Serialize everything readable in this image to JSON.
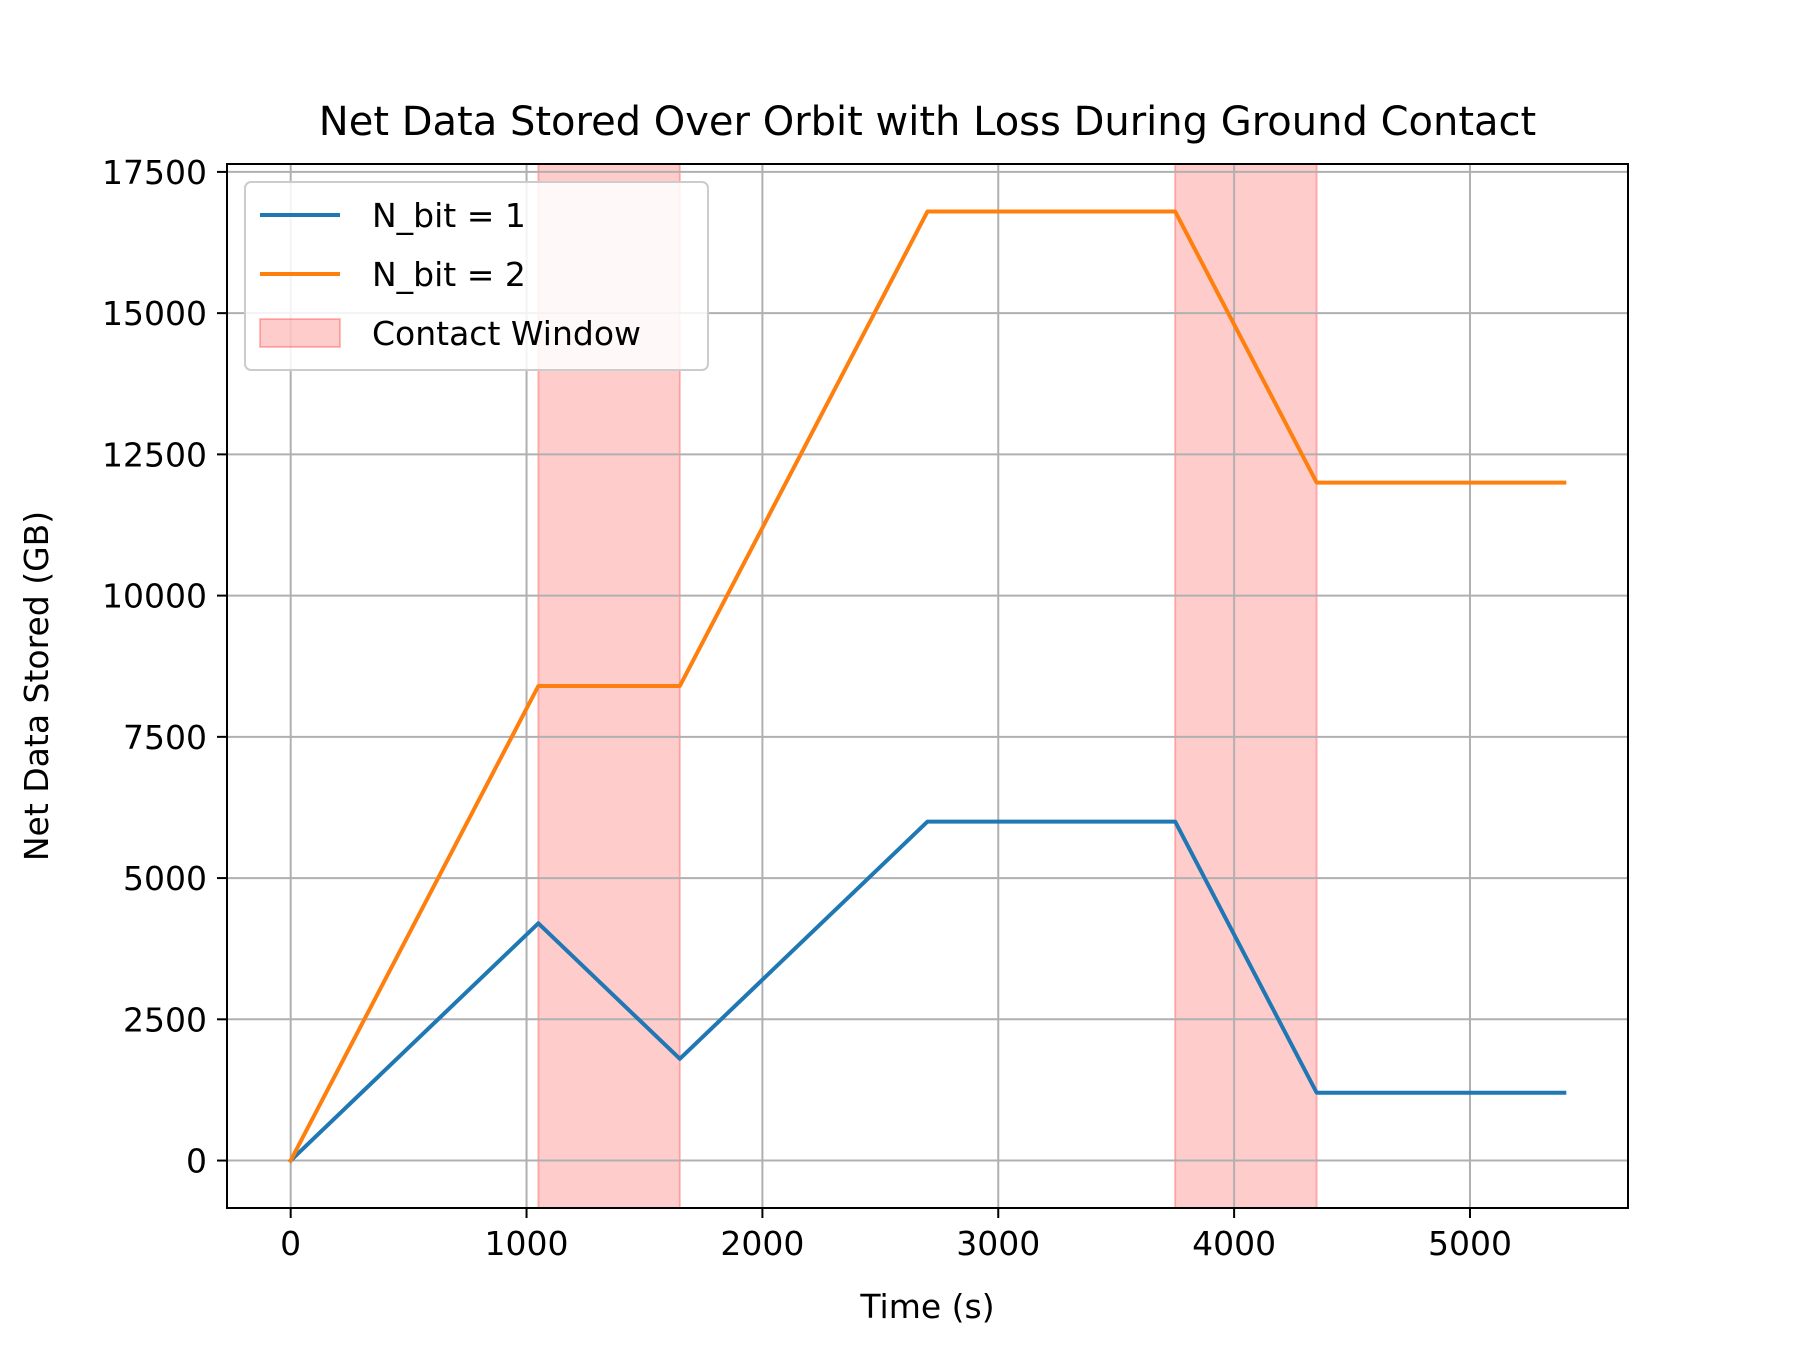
{
  "chart_data": {
    "type": "line",
    "title": "Net Data Stored Over Orbit with Loss During Ground Contact",
    "xlabel": "Time (s)",
    "ylabel": "Net Data Stored (GB)",
    "xlim": [
      -270,
      5670
    ],
    "ylim": [
      -840,
      17640
    ],
    "xticks": [
      0,
      1000,
      2000,
      3000,
      4000,
      5000
    ],
    "yticks": [
      0,
      2500,
      5000,
      7500,
      10000,
      12500,
      15000,
      17500
    ],
    "grid": true,
    "legend_position": "top-left",
    "series": [
      {
        "name": "N_bit = 1",
        "color": "#1f77b4",
        "x": [
          0,
          1050,
          1650,
          2700,
          3750,
          4350,
          5400
        ],
        "y": [
          0,
          4200,
          1800,
          6000,
          6000,
          1200,
          1200
        ]
      },
      {
        "name": "N_bit = 2",
        "color": "#ff7f0e",
        "x": [
          0,
          1050,
          1650,
          2700,
          3750,
          4350,
          5400
        ],
        "y": [
          0,
          8400,
          8400,
          16800,
          16800,
          12000,
          12000
        ]
      }
    ],
    "shaded_regions": {
      "name": "Contact Window",
      "color": "#ff0000",
      "opacity": 0.2,
      "spans": [
        [
          1050,
          1650
        ],
        [
          3750,
          4350
        ]
      ]
    }
  }
}
